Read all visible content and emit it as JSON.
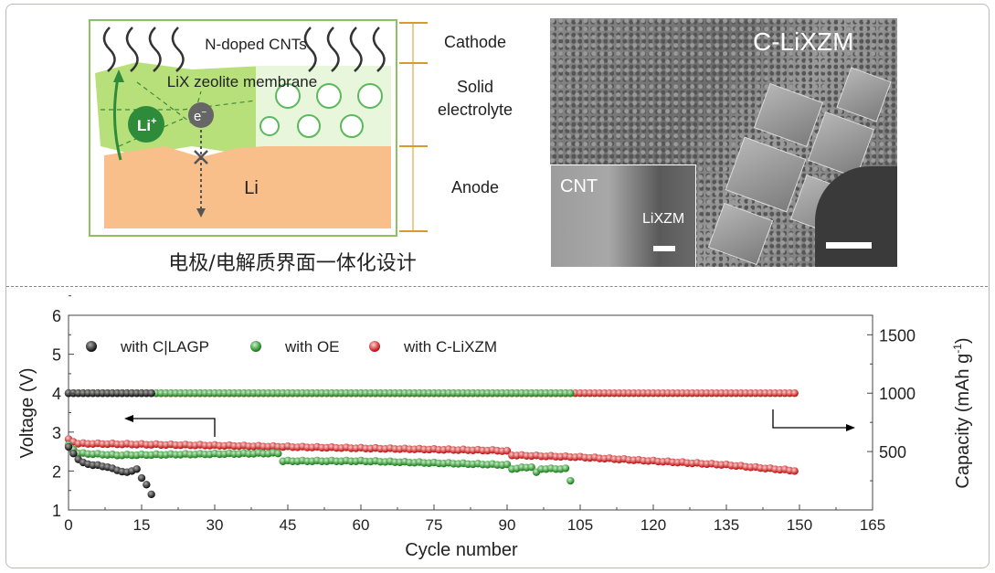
{
  "diagram": {
    "cnt_label": "N-doped CNTs",
    "membrane_label": "LiX zeolite membrane",
    "li_ion": "Li",
    "li_ion_sup": "+",
    "electron": "e",
    "electron_sup": "−",
    "anode_metal": "Li",
    "layers": [
      "Cathode",
      "Solid",
      "electrolyte",
      "Anode"
    ],
    "caption": "电极/电解质界面一体化设计",
    "colors": {
      "membrane": "#b8e07a",
      "anode": "#f8bf8a",
      "frame": "#8cc063",
      "bracket": "#d89a2a",
      "ion": "#2e8b3a"
    }
  },
  "micrograph": {
    "title": "C-LiXZM",
    "inset_label_cnt": "CNT",
    "inset_label_lixzm": "LiXZM"
  },
  "chart_data": {
    "type": "scatter",
    "xlabel": "Cycle number",
    "ylabel_left": "Voltage (V)",
    "ylabel_right": "Capacity (mAh g",
    "ylabel_right_sup": "-1",
    "ylabel_right_end": ")",
    "xlim": [
      0,
      165
    ],
    "ylim_left": [
      1,
      6
    ],
    "ylim_right": [
      0,
      1667
    ],
    "xticks": [
      "0",
      "15",
      "30",
      "45",
      "60",
      "75",
      "90",
      "105",
      "120",
      "135",
      "150",
      "165"
    ],
    "yticks_left": [
      "1",
      "2",
      "3",
      "4",
      "5",
      "6"
    ],
    "yticks_right": [
      "500",
      "1000",
      "1500"
    ],
    "legend_position": "top-left",
    "grid": false,
    "series": [
      {
        "name": "with C|LAGP",
        "color": "#1a1a1a",
        "cycles": [
          0,
          17
        ],
        "capacity": 1000,
        "voltage_keypoints": [
          [
            0,
            2.6
          ],
          [
            1,
            2.45
          ],
          [
            2,
            2.3
          ],
          [
            3,
            2.2
          ],
          [
            5,
            2.15
          ],
          [
            8,
            2.1
          ],
          [
            9,
            2.05
          ],
          [
            12,
            1.95
          ],
          [
            14,
            2.05
          ],
          [
            15,
            1.8
          ],
          [
            16,
            1.65
          ],
          [
            17,
            1.4
          ]
        ]
      },
      {
        "name": "with OE",
        "color": "#1f8a1f",
        "cycles": [
          0,
          103
        ],
        "capacity": 1000,
        "voltage_keypoints": [
          [
            0,
            2.65
          ],
          [
            2,
            2.45
          ],
          [
            10,
            2.4
          ],
          [
            43,
            2.45
          ],
          [
            44,
            2.25
          ],
          [
            60,
            2.25
          ],
          [
            75,
            2.2
          ],
          [
            90,
            2.15
          ],
          [
            91,
            2.05
          ],
          [
            95,
            2.1
          ],
          [
            96,
            1.95
          ],
          [
            97,
            2.05
          ],
          [
            102,
            2.05
          ],
          [
            103,
            1.75
          ]
        ]
      },
      {
        "name": "with C-LiXZM",
        "color": "#cc1818",
        "cycles": [
          0,
          149
        ],
        "capacity": 1000,
        "voltage_keypoints": [
          [
            0,
            2.8
          ],
          [
            2,
            2.7
          ],
          [
            30,
            2.65
          ],
          [
            60,
            2.58
          ],
          [
            88,
            2.52
          ],
          [
            90,
            2.5
          ],
          [
            91,
            2.4
          ],
          [
            105,
            2.35
          ],
          [
            120,
            2.25
          ],
          [
            135,
            2.15
          ],
          [
            149,
            2.0
          ]
        ]
      }
    ]
  }
}
